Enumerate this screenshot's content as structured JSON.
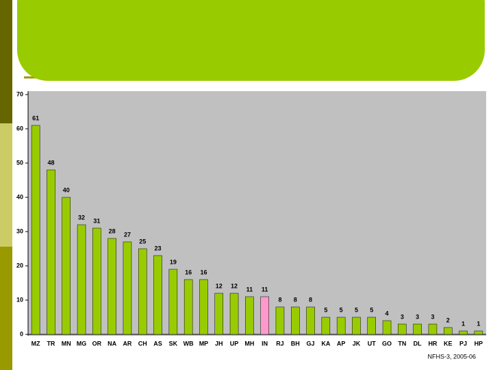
{
  "chart_data": {
    "type": "bar",
    "categories": [
      "MZ",
      "TR",
      "MN",
      "MG",
      "OR",
      "NA",
      "AR",
      "CH",
      "AS",
      "SK",
      "WB",
      "MP",
      "JH",
      "UP",
      "MH",
      "IN",
      "RJ",
      "BH",
      "GJ",
      "KA",
      "AP",
      "JK",
      "UT",
      "GO",
      "TN",
      "DL",
      "HR",
      "KE",
      "PJ",
      "HP"
    ],
    "values": [
      61,
      48,
      40,
      32,
      31,
      28,
      27,
      25,
      23,
      19,
      16,
      16,
      12,
      12,
      11,
      11,
      8,
      8,
      8,
      5,
      5,
      5,
      5,
      4,
      3,
      3,
      3,
      2,
      1,
      1
    ],
    "colors": [
      "#99cc00",
      "#99cc00",
      "#99cc00",
      "#99cc00",
      "#99cc00",
      "#99cc00",
      "#99cc00",
      "#99cc00",
      "#99cc00",
      "#99cc00",
      "#99cc00",
      "#99cc00",
      "#99cc00",
      "#99cc00",
      "#99cc00",
      "#ff99cc",
      "#99cc00",
      "#99cc00",
      "#99cc00",
      "#99cc00",
      "#99cc00",
      "#99cc00",
      "#99cc00",
      "#99cc00",
      "#99cc00",
      "#99cc00",
      "#99cc00",
      "#99cc00",
      "#99cc00",
      "#99cc00"
    ],
    "ylim": [
      0,
      70
    ],
    "yticks": [
      0,
      10,
      20,
      30,
      40,
      50,
      60,
      70
    ],
    "source": "NFHS-3, 2005-06"
  }
}
